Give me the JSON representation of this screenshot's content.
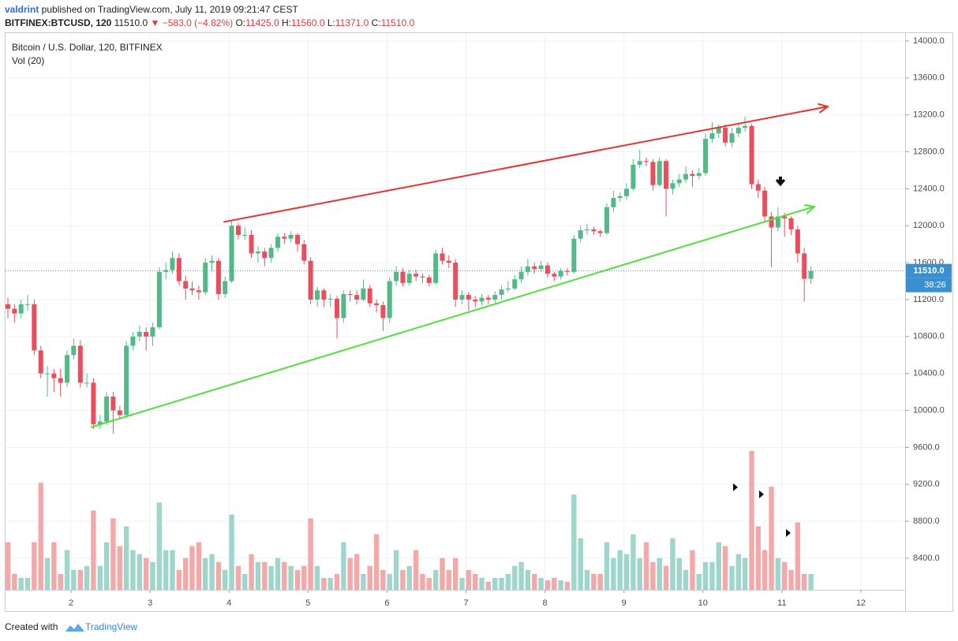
{
  "header": {
    "author": "valdrint",
    "published": " published on TradingView.com, July 11, 2019 09:21:47 CEST",
    "symbol": "BITFINEX:BTCUSD, 120",
    "last": " 11510.0",
    "change": " ▼ −583.0 (−4.82%)",
    "ohlc": [
      {
        "label": " O:",
        "value": "11425.0"
      },
      {
        "label": " H:",
        "value": "11560.0"
      },
      {
        "label": " L:",
        "value": "11371.0"
      },
      {
        "label": " C:",
        "value": "11510.0"
      }
    ]
  },
  "footer": {
    "text": "Created with",
    "brand": "TradingView"
  },
  "chart_data": {
    "type": "candlestick",
    "legend": [
      "Bitcoin / U.S. Dollar, 120, BITFINEX",
      "Vol (20)"
    ],
    "last_price_label": "11510.0",
    "countdown": "38:26",
    "up_color": "#53b987",
    "down_color": "#eb4d5c",
    "volume_up_color": "#9fd6cc",
    "volume_down_color": "#f3a9a9",
    "price_line_color": "#3a8fd1",
    "grid": true,
    "xlim": [
      1.17,
      12.56
    ],
    "xticks": [
      2,
      3,
      4,
      5,
      6,
      7,
      8,
      9,
      10,
      11,
      12
    ],
    "ylim": [
      7828,
      14085
    ],
    "yticks": [
      {
        "value": 8400,
        "label": "8400.0"
      },
      {
        "value": 8800,
        "label": "8800.0"
      },
      {
        "value": 9200,
        "label": "9200.0"
      },
      {
        "value": 9600,
        "label": "9600.0"
      },
      {
        "value": 10000,
        "label": "10000.0"
      },
      {
        "value": 10400,
        "label": "10400.0"
      },
      {
        "value": 10800,
        "label": "10800.0"
      },
      {
        "value": 11200,
        "label": "11200.0"
      },
      {
        "value": 11600,
        "label": "11600.0"
      },
      {
        "value": 12000,
        "label": "12000.0"
      },
      {
        "value": 12400,
        "label": "12400.0"
      },
      {
        "value": 12800,
        "label": "12800.0"
      },
      {
        "value": 13200,
        "label": "13200.0"
      },
      {
        "value": 13600,
        "label": "13600.0"
      },
      {
        "value": 14000,
        "label": "14000.0"
      }
    ],
    "x": [
      1.2,
      1.283,
      1.367,
      1.45,
      1.533,
      1.617,
      1.7,
      1.783,
      1.867,
      1.95,
      2.033,
      2.117,
      2.2,
      2.283,
      2.367,
      2.45,
      2.533,
      2.617,
      2.7,
      2.783,
      2.867,
      2.95,
      3.033,
      3.117,
      3.2,
      3.283,
      3.367,
      3.45,
      3.533,
      3.617,
      3.7,
      3.783,
      3.867,
      3.95,
      4.033,
      4.117,
      4.2,
      4.283,
      4.367,
      4.45,
      4.533,
      4.617,
      4.7,
      4.783,
      4.867,
      4.95,
      5.033,
      5.117,
      5.2,
      5.283,
      5.367,
      5.45,
      5.533,
      5.617,
      5.7,
      5.783,
      5.867,
      5.95,
      6.033,
      6.117,
      6.2,
      6.283,
      6.367,
      6.45,
      6.533,
      6.617,
      6.7,
      6.783,
      6.867,
      6.95,
      7.033,
      7.117,
      7.2,
      7.283,
      7.367,
      7.45,
      7.533,
      7.617,
      7.7,
      7.783,
      7.867,
      7.95,
      8.033,
      8.117,
      8.2,
      8.283,
      8.367,
      8.45,
      8.533,
      8.617,
      8.7,
      8.783,
      8.867,
      8.95,
      9.033,
      9.117,
      9.2,
      9.283,
      9.367,
      9.45,
      9.533,
      9.617,
      9.7,
      9.783,
      9.867,
      9.95,
      10.033,
      10.117,
      10.2,
      10.283,
      10.367,
      10.45,
      10.533,
      10.617,
      10.7,
      10.783,
      10.867,
      10.95,
      11.033,
      11.117,
      11.2,
      11.283,
      11.367
    ],
    "candles": [
      [
        11150,
        11220,
        11000,
        11100
      ],
      [
        11100,
        11150,
        10950,
        11050
      ],
      [
        11050,
        11200,
        11000,
        11150
      ],
      [
        11150,
        11250,
        11080,
        11150
      ],
      [
        11150,
        11200,
        10600,
        10650
      ],
      [
        10650,
        10700,
        10350,
        10400
      ],
      [
        10400,
        10480,
        10150,
        10400
      ],
      [
        10400,
        10450,
        10200,
        10350
      ],
      [
        10350,
        10450,
        10150,
        10300
      ],
      [
        10300,
        10650,
        10250,
        10600
      ],
      [
        10600,
        10780,
        10550,
        10700
      ],
      [
        10700,
        10760,
        10250,
        10300
      ],
      [
        10300,
        10400,
        10250,
        10300
      ],
      [
        10300,
        10350,
        9800,
        9850
      ],
      [
        9850,
        9950,
        9800,
        9880
      ],
      [
        9880,
        10200,
        9840,
        10150
      ],
      [
        10150,
        10200,
        9750,
        10000
      ],
      [
        10000,
        10050,
        9900,
        9950
      ],
      [
        9950,
        10750,
        9920,
        10700
      ],
      [
        10700,
        10850,
        10650,
        10800
      ],
      [
        10800,
        10920,
        10750,
        10850
      ],
      [
        10850,
        10900,
        10650,
        10800
      ],
      [
        10800,
        10950,
        10700,
        10900
      ],
      [
        10900,
        11550,
        10880,
        11500
      ],
      [
        11500,
        11600,
        11420,
        11520
      ],
      [
        11520,
        11720,
        11480,
        11650
      ],
      [
        11650,
        11700,
        11350,
        11400
      ],
      [
        11400,
        11460,
        11200,
        11320
      ],
      [
        11320,
        11400,
        11250,
        11300
      ],
      [
        11300,
        11350,
        11200,
        11280
      ],
      [
        11280,
        11650,
        11250,
        11600
      ],
      [
        11600,
        11680,
        11500,
        11620
      ],
      [
        11620,
        11650,
        11200,
        11260
      ],
      [
        11260,
        11450,
        11220,
        11400
      ],
      [
        11400,
        12050,
        11380,
        12000
      ],
      [
        12000,
        12030,
        11850,
        11900
      ],
      [
        11900,
        11980,
        11850,
        11900
      ],
      [
        11900,
        11950,
        11650,
        11700
      ],
      [
        11700,
        11780,
        11600,
        11720
      ],
      [
        11720,
        11760,
        11560,
        11650
      ],
      [
        11650,
        11800,
        11600,
        11760
      ],
      [
        11760,
        11920,
        11720,
        11880
      ],
      [
        11880,
        11920,
        11800,
        11860
      ],
      [
        11860,
        11940,
        11820,
        11900
      ],
      [
        11900,
        11920,
        11720,
        11800
      ],
      [
        11800,
        11850,
        11580,
        11620
      ],
      [
        11620,
        11660,
        11150,
        11200
      ],
      [
        11200,
        11340,
        11120,
        11300
      ],
      [
        11300,
        11320,
        11120,
        11200
      ],
      [
        11200,
        11260,
        11120,
        11210
      ],
      [
        11210,
        11240,
        10780,
        11000
      ],
      [
        11000,
        11300,
        10950,
        11260
      ],
      [
        11260,
        11300,
        11180,
        11250
      ],
      [
        11250,
        11300,
        11150,
        11200
      ],
      [
        11200,
        11420,
        11180,
        11320
      ],
      [
        11320,
        11360,
        11120,
        11160
      ],
      [
        11160,
        11200,
        11060,
        11140
      ],
      [
        11140,
        11180,
        10860,
        11000
      ],
      [
        11000,
        11440,
        10950,
        11400
      ],
      [
        11400,
        11560,
        11350,
        11500
      ],
      [
        11500,
        11540,
        11340,
        11380
      ],
      [
        11380,
        11520,
        11350,
        11480
      ],
      [
        11480,
        11520,
        11400,
        11450
      ],
      [
        11450,
        11480,
        11380,
        11440
      ],
      [
        11440,
        11470,
        11340,
        11380
      ],
      [
        11380,
        11740,
        11360,
        11700
      ],
      [
        11700,
        11760,
        11580,
        11620
      ],
      [
        11620,
        11680,
        11540,
        11600
      ],
      [
        11600,
        11640,
        11120,
        11200
      ],
      [
        11200,
        11300,
        11150,
        11250
      ],
      [
        11250,
        11280,
        11080,
        11200
      ],
      [
        11200,
        11240,
        11120,
        11180
      ],
      [
        11180,
        11260,
        11140,
        11220
      ],
      [
        11220,
        11250,
        11150,
        11200
      ],
      [
        11200,
        11290,
        11160,
        11250
      ],
      [
        11250,
        11350,
        11200,
        11310
      ],
      [
        11310,
        11400,
        11280,
        11320
      ],
      [
        11320,
        11470,
        11300,
        11420
      ],
      [
        11420,
        11560,
        11380,
        11500
      ],
      [
        11500,
        11640,
        11460,
        11560
      ],
      [
        11560,
        11600,
        11480,
        11530
      ],
      [
        11530,
        11620,
        11500,
        11570
      ],
      [
        11570,
        11600,
        11440,
        11480
      ],
      [
        11480,
        11500,
        11400,
        11450
      ],
      [
        11450,
        11540,
        11420,
        11510
      ],
      [
        11510,
        11540,
        11460,
        11500
      ],
      [
        11500,
        11900,
        11480,
        11860
      ],
      [
        11860,
        12000,
        11820,
        11950
      ],
      [
        11950,
        12020,
        11900,
        11960
      ],
      [
        11960,
        11990,
        11900,
        11940
      ],
      [
        11940,
        11960,
        11880,
        11920
      ],
      [
        11920,
        12240,
        11900,
        12200
      ],
      [
        12200,
        12380,
        12150,
        12300
      ],
      [
        12300,
        12360,
        12260,
        12320
      ],
      [
        12320,
        12460,
        12280,
        12400
      ],
      [
        12400,
        12720,
        12380,
        12660
      ],
      [
        12660,
        12820,
        12620,
        12700
      ],
      [
        12700,
        12740,
        12640,
        12690
      ],
      [
        12690,
        12720,
        12380,
        12440
      ],
      [
        12440,
        12740,
        12420,
        12700
      ],
      [
        12700,
        12720,
        12100,
        12400
      ],
      [
        12400,
        12500,
        12340,
        12460
      ],
      [
        12460,
        12560,
        12420,
        12500
      ],
      [
        12500,
        12640,
        12460,
        12560
      ],
      [
        12560,
        12600,
        12420,
        12540
      ],
      [
        12540,
        12620,
        12500,
        12570
      ],
      [
        12570,
        13000,
        12540,
        12940
      ],
      [
        12940,
        13120,
        12900,
        13000
      ],
      [
        13000,
        13100,
        12950,
        13060
      ],
      [
        13060,
        13100,
        12860,
        12900
      ],
      [
        12900,
        13060,
        12850,
        13000
      ],
      [
        13000,
        13100,
        12960,
        13060
      ],
      [
        13060,
        13180,
        13020,
        13080
      ],
      [
        13080,
        13100,
        12400,
        12450
      ],
      [
        12450,
        12500,
        12300,
        12380
      ],
      [
        12380,
        12420,
        12050,
        12100
      ],
      [
        12100,
        12150,
        11550,
        11980
      ],
      [
        11980,
        12200,
        11940,
        12100
      ],
      [
        12100,
        12140,
        11880,
        12080
      ],
      [
        12080,
        12100,
        11900,
        11960
      ],
      [
        11960,
        12000,
        11600,
        11700
      ],
      [
        11700,
        11760,
        11180,
        11425
      ],
      [
        11425,
        11560,
        11371,
        11510
      ]
    ],
    "volume": [
      60,
      20,
      15,
      15,
      60,
      135,
      40,
      60,
      20,
      50,
      25,
      25,
      30,
      100,
      30,
      60,
      90,
      55,
      80,
      50,
      45,
      40,
      35,
      110,
      50,
      50,
      25,
      40,
      55,
      60,
      40,
      45,
      35,
      25,
      95,
      30,
      20,
      45,
      35,
      35,
      30,
      40,
      35,
      30,
      25,
      30,
      90,
      30,
      15,
      15,
      20,
      60,
      40,
      45,
      20,
      30,
      70,
      25,
      20,
      50,
      25,
      30,
      50,
      20,
      15,
      25,
      40,
      25,
      40,
      15,
      25,
      20,
      15,
      10,
      15,
      15,
      20,
      30,
      35,
      25,
      20,
      15,
      12,
      15,
      12,
      10,
      120,
      65,
      25,
      20,
      20,
      60,
      40,
      50,
      45,
      70,
      40,
      60,
      35,
      40,
      30,
      65,
      40,
      25,
      50,
      20,
      35,
      35,
      60,
      55,
      30,
      45,
      40,
      175,
      80,
      50,
      130,
      40,
      35,
      25,
      85,
      20,
      20
    ],
    "trendlines": [
      {
        "color": "#e8322f",
        "x": [
          3.93,
          11.58
        ],
        "y": [
          12040,
          13290
        ]
      },
      {
        "color": "#4fe23a",
        "x": [
          2.25,
          11.41
        ],
        "y": [
          9817,
          12207
        ]
      }
    ]
  }
}
